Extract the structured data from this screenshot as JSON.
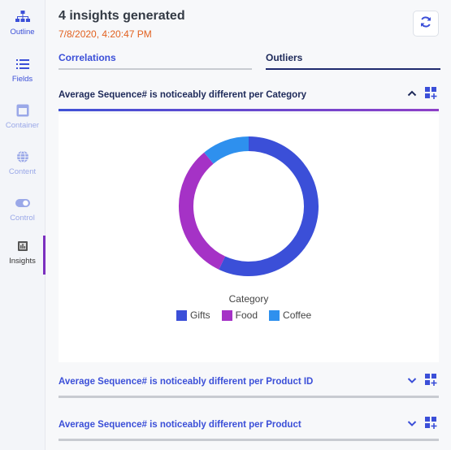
{
  "rail": {
    "items": [
      {
        "label": "Outline",
        "icon": "sitemap-icon"
      },
      {
        "label": "Fields",
        "icon": "list-icon"
      },
      {
        "label": "Container",
        "icon": "container-icon"
      },
      {
        "label": "Content",
        "icon": "globe-icon"
      },
      {
        "label": "Control",
        "icon": "toggle-icon"
      },
      {
        "label": "Insights",
        "icon": "insights-icon"
      }
    ],
    "selected": "Insights"
  },
  "header": {
    "title": "4 insights generated",
    "timestamp": "7/8/2020, 4:20:47 PM",
    "refresh_icon": "refresh-icon"
  },
  "tabs": {
    "correlations": "Correlations",
    "outliers": "Outliers",
    "active": "Outliers"
  },
  "insights": [
    {
      "title": "Average Sequence# is noticeably different per Category",
      "expanded": true
    },
    {
      "title": "Average Sequence# is noticeably different per Product ID",
      "expanded": false
    },
    {
      "title": "Average Sequence# is noticeably different per Product",
      "expanded": false
    }
  ],
  "chart_data": {
    "type": "pie",
    "donut": true,
    "legend_title": "Category",
    "categories": [
      "Gifts",
      "Food",
      "Coffee"
    ],
    "values": [
      57,
      32,
      11
    ],
    "colors": [
      "#3b4fd8",
      "#a532c6",
      "#2e90ee"
    ],
    "legend_position": "bottom"
  }
}
